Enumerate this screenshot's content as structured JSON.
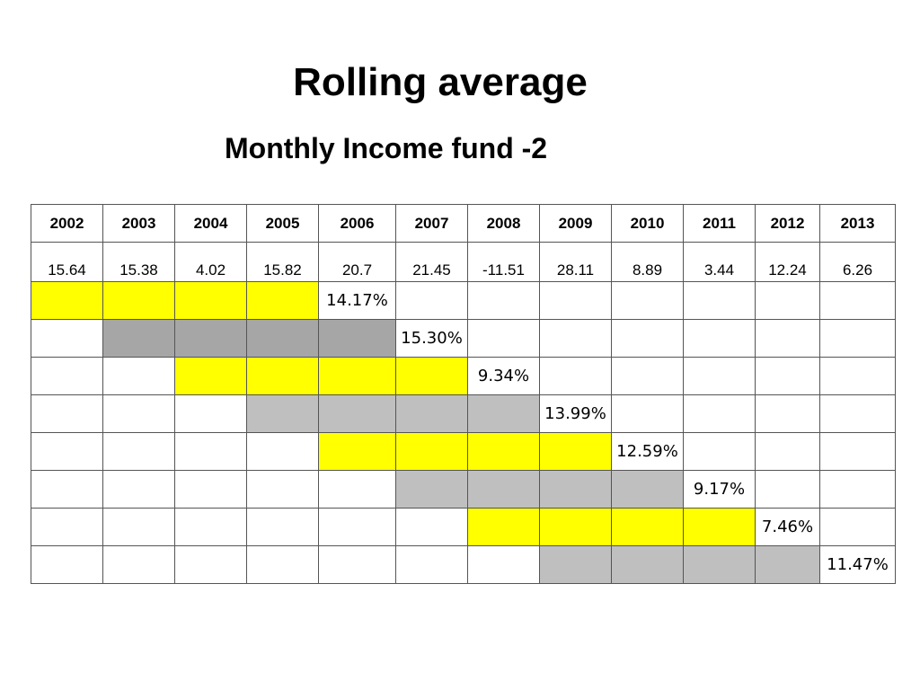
{
  "title": "Rolling average",
  "subtitle": "Monthly Income fund -2",
  "colors": {
    "yellow": "#ffff00",
    "gray_dark": "#a6a6a6",
    "gray": "#bfbfbf",
    "border": "#555555"
  },
  "years": [
    "2002",
    "2003",
    "2004",
    "2005",
    "2006",
    "2007",
    "2008",
    "2009",
    "2010",
    "2011",
    "2012",
    "2013"
  ],
  "returns": [
    "15.64",
    "15.38",
    "4.02",
    "15.82",
    "20.7",
    "21.45",
    "-11.51",
    "28.11",
    "8.89",
    "3.44",
    "12.24",
    "6.26"
  ],
  "rolling_rows": [
    {
      "start": 0,
      "result_col": 4,
      "result": "14.17%",
      "shade": "yellow"
    },
    {
      "start": 1,
      "result_col": 5,
      "result": "15.30%",
      "shade": "gray-dark"
    },
    {
      "start": 2,
      "result_col": 6,
      "result": "9.34%",
      "shade": "yellow"
    },
    {
      "start": 3,
      "result_col": 7,
      "result": "13.99%",
      "shade": "gray"
    },
    {
      "start": 4,
      "result_col": 8,
      "result": "12.59%",
      "shade": "yellow"
    },
    {
      "start": 5,
      "result_col": 9,
      "result": "9.17%",
      "shade": "gray"
    },
    {
      "start": 6,
      "result_col": 10,
      "result": "7.46%",
      "shade": "yellow"
    },
    {
      "start": 7,
      "result_col": 11,
      "result": "11.47%",
      "shade": "gray"
    }
  ]
}
